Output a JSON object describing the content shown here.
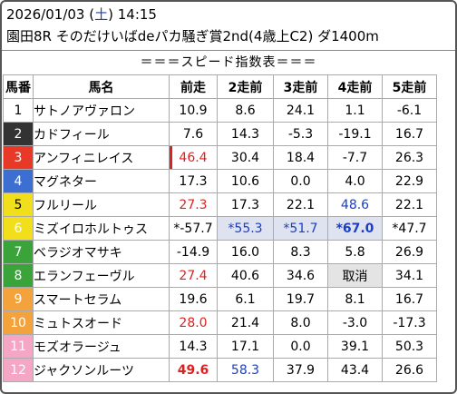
{
  "header": {
    "date": "2026/01/03",
    "weekday": "土",
    "time": "14:15",
    "race": "園田8R そのだけいばdeパカ騒ぎ賞2nd(4歳上C2) ダ1400m"
  },
  "subtitle": "＝＝＝スピード指数表＝＝＝",
  "columns": [
    "馬番",
    "馬名",
    "前走",
    "2走前",
    "3走前",
    "4走前",
    "5走前"
  ],
  "colors": {
    "red": "#e02020",
    "blue": "#1a3fc4",
    "highlight_blue": "#dfe3f0",
    "highlight_gray": "#e4e4e4"
  },
  "rows": [
    {
      "num": "1",
      "bg": "#ffffff",
      "fg": "#000000",
      "name": "サトノアヴァロン",
      "vals": [
        "10.9",
        "8.6",
        "24.1",
        "1.1",
        "-6.1"
      ]
    },
    {
      "num": "2",
      "bg": "#333333",
      "fg": "#ffffff",
      "name": "カドフィール",
      "vals": [
        "7.6",
        "14.3",
        "-5.3",
        "-19.1",
        "16.7"
      ]
    },
    {
      "num": "3",
      "bg": "#e83828",
      "fg": "#ffffff",
      "name": "アンフィニレイス",
      "vals": [
        "46.4",
        "30.4",
        "18.4",
        "-7.7",
        "26.3"
      ]
    },
    {
      "num": "4",
      "bg": "#3c6fd1",
      "fg": "#ffffff",
      "name": "マグネター",
      "vals": [
        "17.3",
        "10.6",
        "0.0",
        "4.0",
        "22.9"
      ]
    },
    {
      "num": "5",
      "bg": "#f2df1b",
      "fg": "#000000",
      "name": "フルリール",
      "vals": [
        "27.3",
        "17.3",
        "22.1",
        "48.6",
        "22.1"
      ]
    },
    {
      "num": "6",
      "bg": "#f2df1b",
      "fg": "#ffffff",
      "name": "ミズイロホルトゥス",
      "vals": [
        "*-57.7",
        "*55.3",
        "*51.7",
        "*67.0",
        "*47.7"
      ]
    },
    {
      "num": "7",
      "bg": "#3aa43a",
      "fg": "#ffffff",
      "name": "ベラジオマサキ",
      "vals": [
        "-14.9",
        "16.0",
        "8.3",
        "5.8",
        "26.9"
      ]
    },
    {
      "num": "8",
      "bg": "#3aa43a",
      "fg": "#ffffff",
      "name": "エランフェーヴル",
      "vals": [
        "27.4",
        "40.6",
        "34.6",
        "取消",
        "34.1"
      ]
    },
    {
      "num": "9",
      "bg": "#f3a23c",
      "fg": "#ffffff",
      "name": "スマートセラム",
      "vals": [
        "19.6",
        "6.1",
        "19.7",
        "8.1",
        "16.7"
      ]
    },
    {
      "num": "10",
      "bg": "#f3a23c",
      "fg": "#ffffff",
      "name": "ミュトスオード",
      "vals": [
        "28.0",
        "21.4",
        "8.0",
        "-3.0",
        "-17.3"
      ]
    },
    {
      "num": "11",
      "bg": "#f4a6c4",
      "fg": "#ffffff",
      "name": "モズオラージュ",
      "vals": [
        "14.3",
        "17.1",
        "0.0",
        "39.1",
        "50.3"
      ]
    },
    {
      "num": "12",
      "bg": "#f4a6c4",
      "fg": "#ffffff",
      "name": "ジャクソンルーツ",
      "vals": [
        "49.6",
        "58.3",
        "37.9",
        "43.4",
        "26.6"
      ]
    }
  ],
  "cell_styles": {
    "2-0": "red bar",
    "4-0": "red",
    "4-3": "blue",
    "5-1": "blue hl-blue",
    "5-2": "blue hl-blue",
    "5-3": "blue bold hl-blue",
    "7-0": "red",
    "7-3": "hl-gray",
    "9-0": "red",
    "11-0": "red bold",
    "11-1": "blue"
  }
}
